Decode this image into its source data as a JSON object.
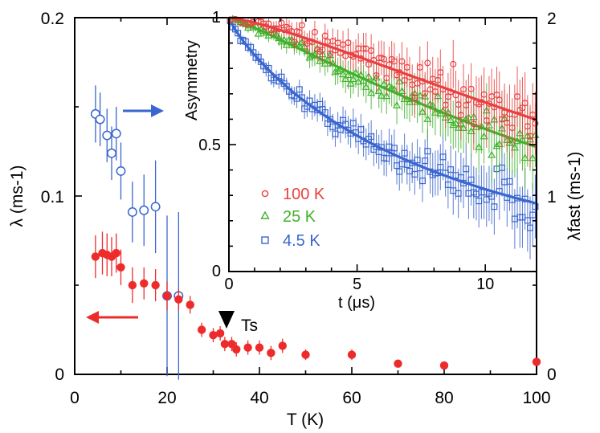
{
  "chart_data": [
    {
      "type": "scatter",
      "xlabel": "T (K)",
      "ylabel": "λ (ms-1)",
      "ylabel_right": "λfast (ms-1)",
      "xlim": [
        0,
        100
      ],
      "ylim": [
        0,
        0.2
      ],
      "ylim_right": [
        0,
        2
      ],
      "xticks": [
        "0",
        "20",
        "40",
        "60",
        "80",
        "100"
      ],
      "yticks": [
        "0",
        "0.1",
        "0.2"
      ],
      "yticks_right": [
        "0",
        "1",
        "2"
      ],
      "annotation": "Ts",
      "annotation_x": 33,
      "series": [
        {
          "name": "λ",
          "axis": "left",
          "color": "#ee2b2b",
          "marker": "filled-circle",
          "x": [
            4.5,
            6,
            7,
            8,
            9,
            10,
            12.5,
            15,
            17.5,
            20,
            22.5,
            25,
            27.5,
            30,
            31.5,
            32.5,
            34,
            35,
            37.5,
            40,
            42.5,
            45,
            50,
            60,
            70,
            80,
            100
          ],
          "y": [
            0.066,
            0.068,
            0.067,
            0.066,
            0.068,
            0.06,
            0.05,
            0.051,
            0.05,
            0.044,
            0.042,
            0.039,
            0.025,
            0.022,
            0.023,
            0.017,
            0.017,
            0.014,
            0.015,
            0.015,
            0.012,
            0.016,
            0.011,
            0.011,
            0.006,
            0.005,
            0.007
          ],
          "err": [
            0.012,
            0.012,
            0.012,
            0.011,
            0.011,
            0.01,
            0.01,
            0.009,
            0.009,
            0.008,
            0.006,
            0.005,
            0.004,
            0.004,
            0.004,
            0.004,
            0.004,
            0.004,
            0.004,
            0.004,
            0.004,
            0.004,
            0.003,
            0.003,
            0.002,
            0.002,
            0.002
          ]
        },
        {
          "name": "λfast",
          "axis": "right",
          "color": "#3a66cf",
          "marker": "open-circle",
          "x": [
            4.5,
            5.5,
            7,
            8,
            9,
            10,
            12.5,
            15,
            17.5,
            20,
            22.5
          ],
          "y": [
            1.46,
            1.43,
            1.34,
            1.24,
            1.35,
            1.14,
            0.91,
            0.92,
            0.94,
            0.44,
            0.44
          ],
          "err": [
            0.16,
            0.15,
            0.15,
            0.15,
            0.15,
            0.16,
            0.17,
            0.2,
            0.26,
            0.45,
            0.47
          ]
        }
      ]
    },
    {
      "type": "scatter",
      "ylabel": "Asymmetry",
      "xlabel": "t (μs)",
      "xlim": [
        0,
        12
      ],
      "ylim": [
        0,
        1
      ],
      "xticks": [
        "0",
        "5",
        "10"
      ],
      "yticks": [
        "0",
        "0.5",
        "1"
      ],
      "series": [
        {
          "name": "100 K",
          "color": "#e84040",
          "marker": "open-circle",
          "fit_decay": 0.05,
          "fit_power": 1.3
        },
        {
          "name": "25 K",
          "color": "#3fb22a",
          "marker": "open-triangle",
          "fit_decay": 0.062,
          "fit_power": 1.15
        },
        {
          "name": "4.5 K",
          "color": "#3a66cf",
          "marker": "open-square",
          "fit_decay": 0.115,
          "fit_power": 0.85
        }
      ]
    }
  ]
}
